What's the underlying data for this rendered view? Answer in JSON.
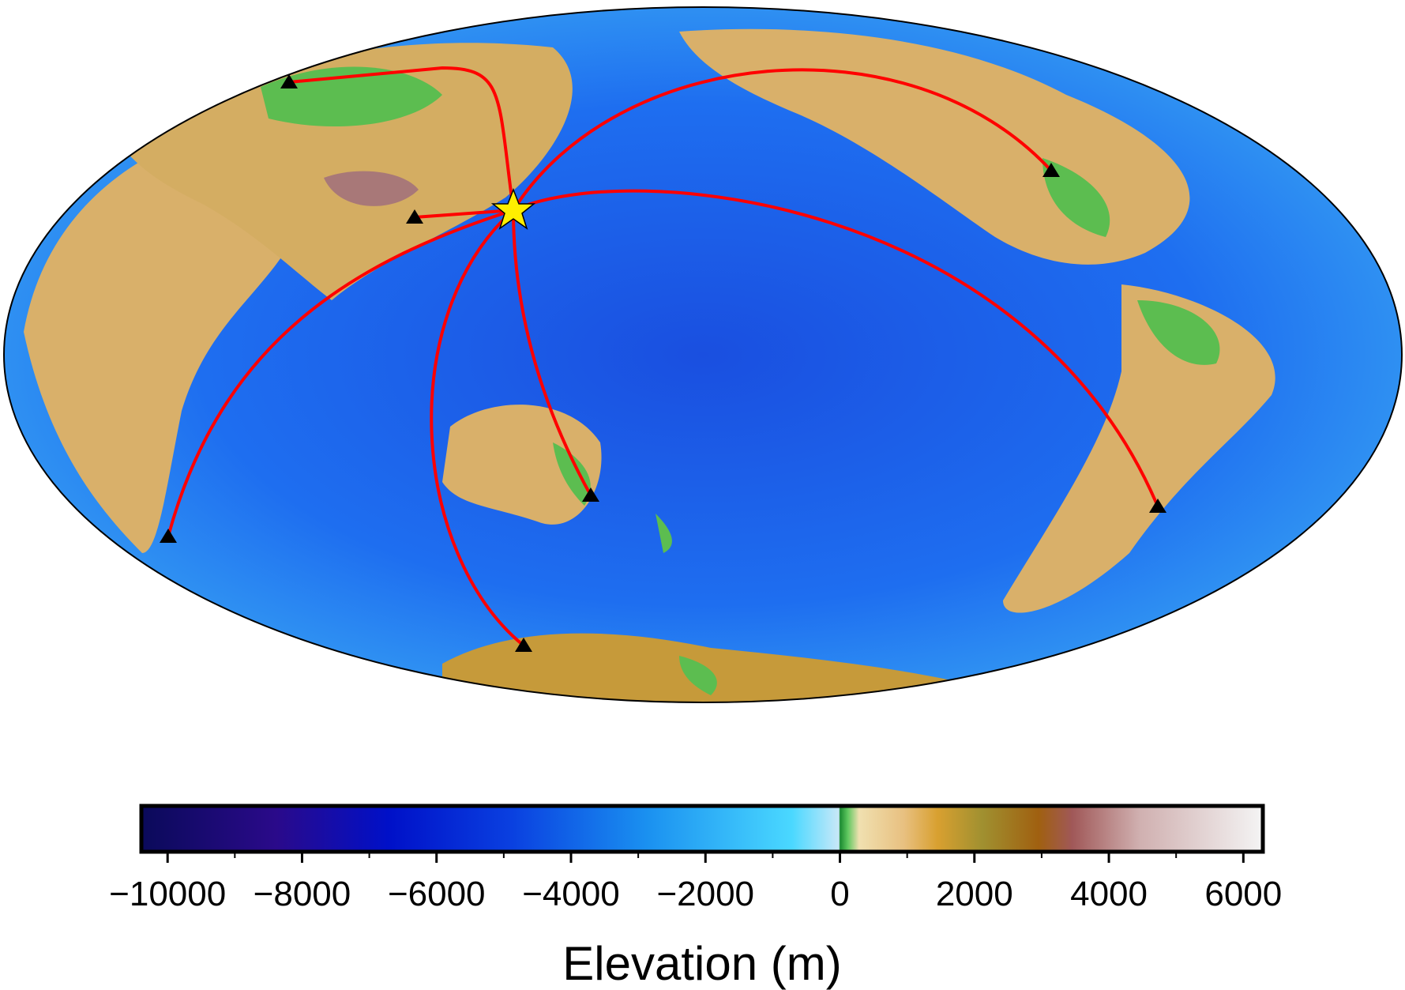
{
  "colorbar": {
    "label": "Elevation (m)",
    "xlim": [
      -10390,
      6290
    ],
    "xticks": [
      {
        "value": -10000,
        "label": "−10000"
      },
      {
        "value": -8000,
        "label": "−8000"
      },
      {
        "value": -6000,
        "label": "−6000"
      },
      {
        "value": -4000,
        "label": "−4000"
      },
      {
        "value": -2000,
        "label": "−2000"
      },
      0,
      2000,
      4000,
      6000
    ],
    "xminorticks": [
      -9000,
      -7000,
      -5000,
      -3000,
      -1000,
      1000,
      3000,
      5000
    ]
  }
}
